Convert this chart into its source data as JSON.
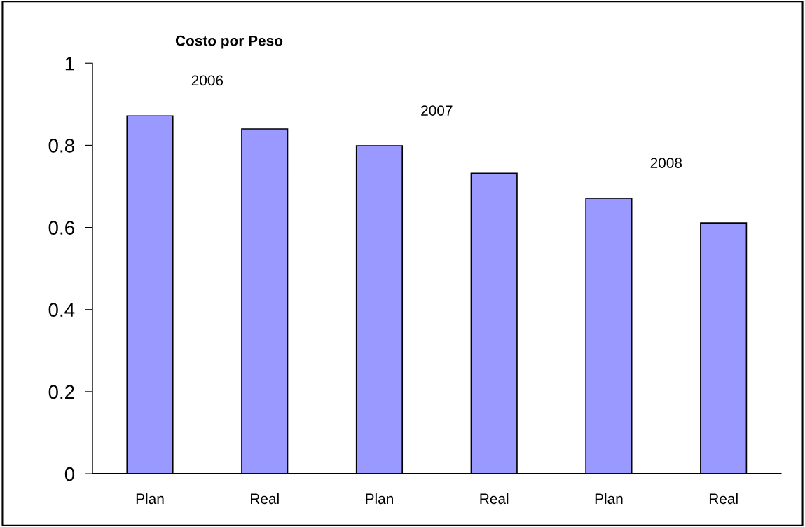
{
  "chart_data": {
    "type": "bar",
    "title": "Costo por Peso",
    "categories": [
      "Plan",
      "Real",
      "Plan",
      "Real",
      "Plan",
      "Real"
    ],
    "values": [
      0.872,
      0.84,
      0.799,
      0.732,
      0.671,
      0.611
    ],
    "color": "#9999ff",
    "ylim": [
      0,
      1
    ],
    "yticks": [
      0,
      0.2,
      0.4,
      0.6,
      0.8,
      1
    ],
    "annotations": [
      "2006",
      "2007",
      "2008"
    ],
    "grid": false,
    "legend": false
  }
}
